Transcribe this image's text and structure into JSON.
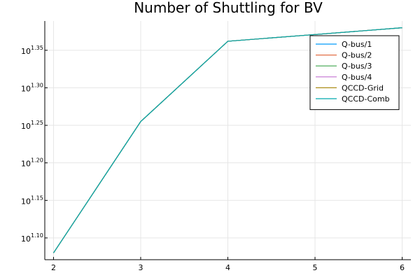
{
  "chart_data": {
    "type": "line",
    "title": "Number of Shuttling for BV",
    "xlabel": "",
    "ylabel": "",
    "x": [
      2,
      3,
      4,
      5,
      6
    ],
    "y_scale": "log10",
    "y_log_exponents": [
      1.08,
      1.255,
      1.362,
      1.371,
      1.38
    ],
    "x_ticks": [
      "2",
      "3",
      "4",
      "5",
      "6"
    ],
    "y_ticks": [
      {
        "base": "10",
        "exp": "1.35"
      },
      {
        "base": "10",
        "exp": "1.30"
      },
      {
        "base": "10",
        "exp": "1.25"
      },
      {
        "base": "10",
        "exp": "1.20"
      },
      {
        "base": "10",
        "exp": "1.15"
      },
      {
        "base": "10",
        "exp": "1.10"
      }
    ],
    "xlim": [
      1.9,
      6.1
    ],
    "y_exp_lim": [
      1.071,
      1.389
    ],
    "grid": true,
    "legend_position": "top-right",
    "series": [
      {
        "name": "Q-bus/1",
        "color": "#009af9",
        "values": [
          1.08,
          1.255,
          1.362,
          1.371,
          1.38
        ]
      },
      {
        "name": "Q-bus/2",
        "color": "#e26f46",
        "values": [
          1.08,
          1.255,
          1.362,
          1.371,
          1.38
        ]
      },
      {
        "name": "Q-bus/3",
        "color": "#3da44d",
        "values": [
          1.08,
          1.255,
          1.362,
          1.371,
          1.38
        ]
      },
      {
        "name": "Q-bus/4",
        "color": "#c271d2",
        "values": [
          1.08,
          1.255,
          1.362,
          1.371,
          1.38
        ]
      },
      {
        "name": "QCCD-Grid",
        "color": "#ac8d18",
        "values": [
          1.08,
          1.255,
          1.362,
          1.371,
          1.38
        ]
      },
      {
        "name": "QCCD-Comb",
        "color": "#00a9ad",
        "values": [
          1.08,
          1.255,
          1.362,
          1.371,
          1.38
        ]
      }
    ]
  }
}
